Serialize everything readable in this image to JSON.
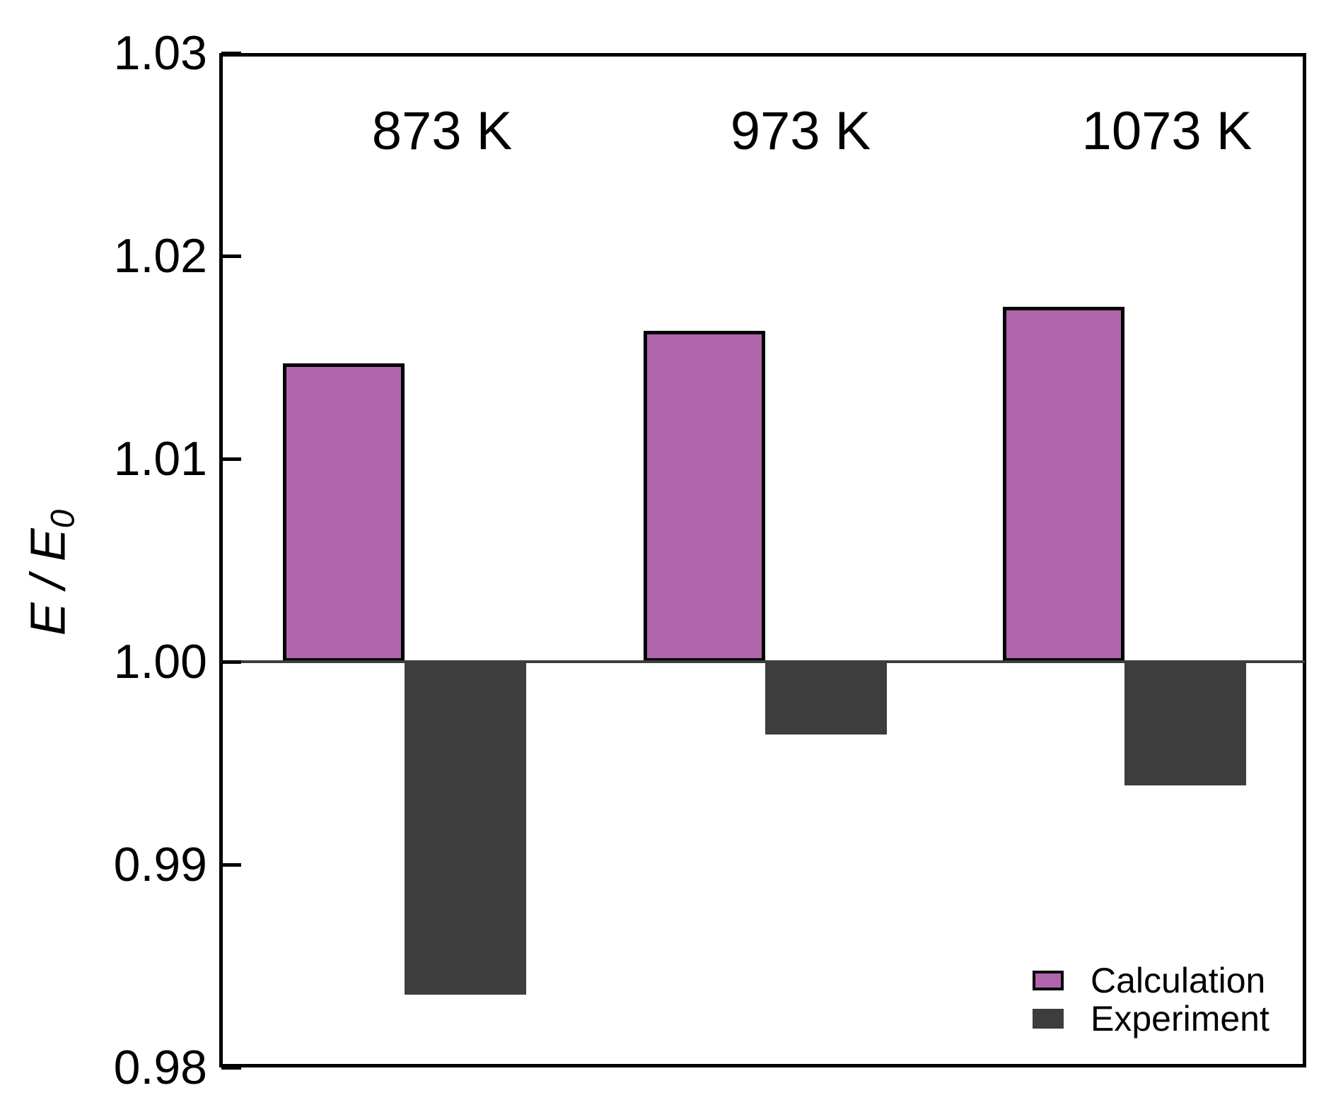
{
  "chart_data": {
    "type": "bar",
    "title": "",
    "categories": [
      "873 K",
      "973 K",
      "1073 K"
    ],
    "series": [
      {
        "name": "Calculation",
        "color": "#b065ab",
        "edge_color": "#000000",
        "values": [
          1.0147,
          1.0163,
          1.0175
        ]
      },
      {
        "name": "Experiment",
        "color": "#3d3d3d",
        "edge_color": "#3d3d3d",
        "values": [
          0.9836,
          0.9964,
          0.9939
        ]
      }
    ],
    "baseline": 1.0,
    "ylabel_parts": {
      "main": "E / E",
      "sub": "0"
    },
    "ylim": [
      0.98,
      1.03
    ],
    "ytick_step": 0.01,
    "ytick_labels": [
      "0.98",
      "0.99",
      "1.00",
      "1.01",
      "1.02",
      "1.03"
    ],
    "xtick_labels_shown": false,
    "grid": false,
    "zero_line_color": "#3d3d3d",
    "legend_position": "lower right"
  }
}
